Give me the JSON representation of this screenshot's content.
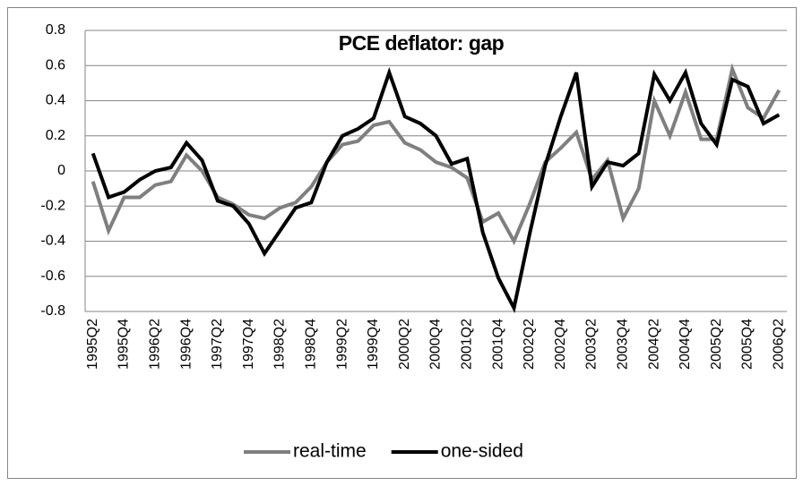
{
  "chart_data": {
    "type": "line",
    "title": "PCE deflator: gap",
    "categories": [
      "1995Q2",
      null,
      "1995Q4",
      null,
      "1996Q2",
      null,
      "1996Q4",
      null,
      "1997Q2",
      null,
      "1997Q4",
      null,
      "1998Q2",
      null,
      "1998Q4",
      null,
      "1999Q2",
      null,
      "1999Q4",
      null,
      "2000Q2",
      null,
      "2000Q4",
      null,
      "2001Q2",
      null,
      "2001Q4",
      null,
      "2002Q2",
      null,
      "2002Q4",
      null,
      "2003Q2",
      null,
      "2003Q4",
      null,
      "2004Q2",
      null,
      "2004Q4",
      null,
      "2005Q2",
      null,
      "2005Q4",
      null,
      "2006Q2"
    ],
    "series": [
      {
        "name": "real-time",
        "color": "#7f7f7f",
        "values": [
          -0.06,
          -0.34,
          -0.15,
          -0.15,
          -0.08,
          -0.06,
          0.09,
          0.0,
          -0.15,
          -0.19,
          -0.25,
          -0.27,
          -0.21,
          -0.18,
          -0.09,
          0.05,
          0.15,
          0.17,
          0.26,
          0.28,
          0.16,
          0.12,
          0.05,
          0.02,
          -0.04,
          -0.29,
          -0.24,
          -0.4,
          -0.19,
          0.05,
          0.13,
          0.22,
          -0.05,
          0.06,
          -0.27,
          -0.1,
          0.4,
          0.2,
          0.45,
          0.18,
          0.18,
          0.58,
          0.36,
          0.3,
          0.46
        ]
      },
      {
        "name": "one-sided",
        "color": "#000000",
        "values": [
          0.1,
          -0.15,
          -0.12,
          -0.05,
          0.0,
          0.02,
          0.16,
          0.06,
          -0.17,
          -0.2,
          -0.3,
          -0.47,
          -0.34,
          -0.21,
          -0.18,
          0.05,
          0.2,
          0.24,
          0.3,
          0.56,
          0.31,
          0.27,
          0.2,
          0.04,
          0.07,
          -0.35,
          -0.61,
          -0.78,
          -0.36,
          0.03,
          0.31,
          0.56,
          -0.09,
          0.05,
          0.03,
          0.1,
          0.55,
          0.4,
          0.56,
          0.27,
          0.15,
          0.52,
          0.48,
          0.27,
          0.32
        ]
      }
    ],
    "ylim": [
      -0.8,
      0.8
    ],
    "yticks": [
      -0.8,
      -0.6,
      -0.4,
      -0.2,
      0,
      0.2,
      0.4,
      0.6,
      0.8
    ],
    "grid": true,
    "legend": "bottom"
  }
}
